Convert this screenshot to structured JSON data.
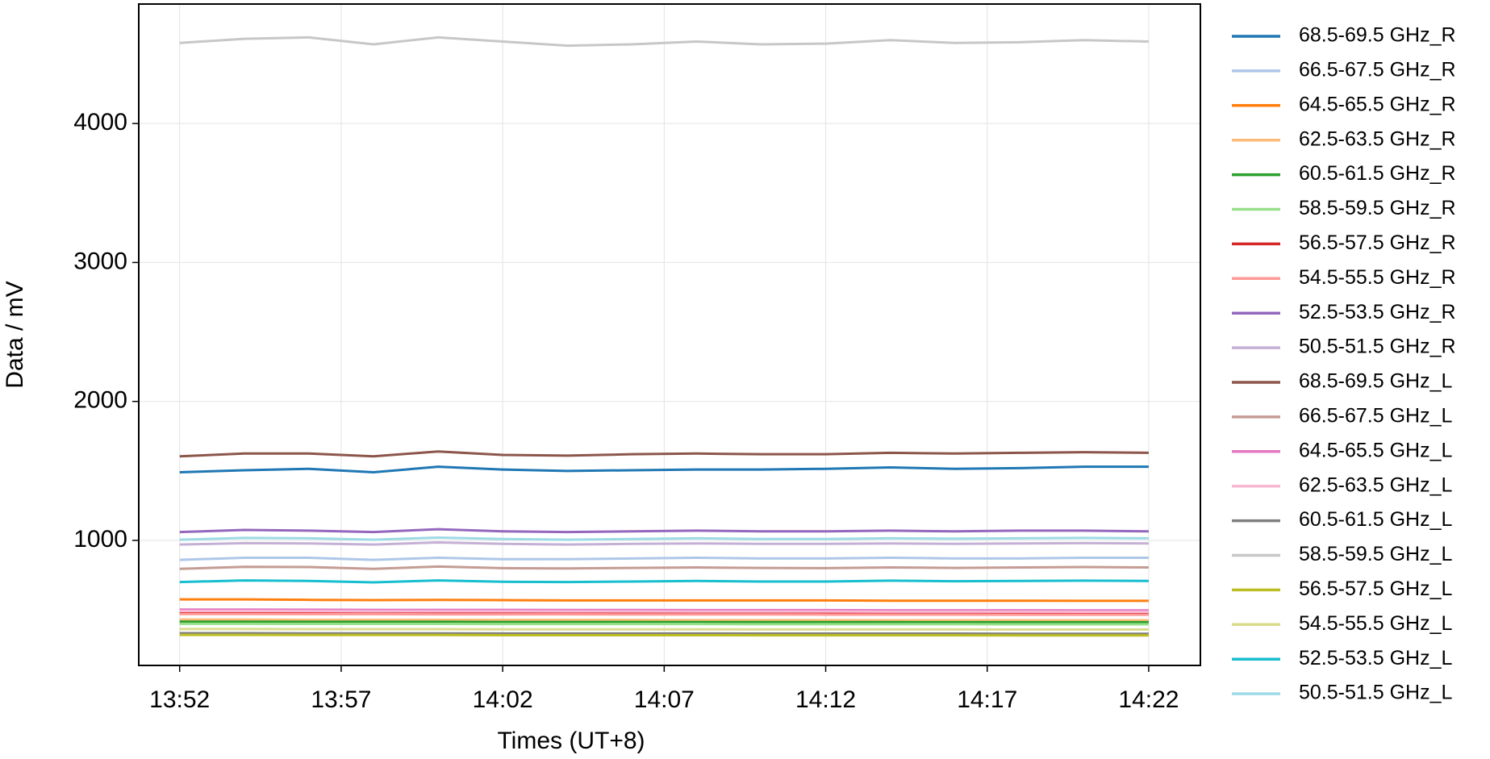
{
  "chart_data": {
    "type": "line",
    "x_label": "Times (UT+8)",
    "y_label": "Data / mV",
    "x": [
      "13:52",
      "13:54",
      "13:56",
      "13:58",
      "14:00",
      "14:02",
      "14:04",
      "14:06",
      "14:08",
      "14:10",
      "14:12",
      "14:14",
      "14:16",
      "14:18",
      "14:20",
      "14:22"
    ],
    "xlim": [
      "13:50:44",
      "14:23:36"
    ],
    "xticks": [
      "13:52",
      "13:57",
      "14:02",
      "14:07",
      "14:12",
      "14:17",
      "14:22"
    ],
    "ylim": [
      100,
      4860
    ],
    "yticks": [
      1000,
      2000,
      3000,
      4000
    ],
    "grid": true,
    "legend": "outside right",
    "series": [
      {
        "name": "68.5-69.5 GHz_R",
        "color": "#1f77b4",
        "values": [
          1490,
          1505,
          1515,
          1490,
          1530,
          1510,
          1500,
          1505,
          1510,
          1510,
          1515,
          1525,
          1515,
          1520,
          1530,
          1530
        ]
      },
      {
        "name": "66.5-67.5 GHz_R",
        "color": "#aec7e8",
        "values": [
          860,
          875,
          875,
          860,
          875,
          865,
          865,
          870,
          875,
          870,
          870,
          875,
          870,
          870,
          875,
          875
        ]
      },
      {
        "name": "64.5-65.5 GHz_R",
        "color": "#ff7f0e",
        "values": [
          575,
          575,
          572,
          570,
          572,
          570,
          568,
          568,
          568,
          568,
          568,
          566,
          566,
          566,
          565,
          565
        ]
      },
      {
        "name": "62.5-63.5 GHz_R",
        "color": "#ffbb78",
        "values": [
          430,
          430,
          428,
          428,
          428,
          427,
          427,
          427,
          426,
          426,
          426,
          425,
          425,
          425,
          425,
          425
        ]
      },
      {
        "name": "60.5-61.5 GHz_R",
        "color": "#2ca02c",
        "values": [
          415,
          415,
          414,
          414,
          414,
          413,
          413,
          413,
          412,
          412,
          412,
          412,
          411,
          411,
          411,
          411
        ]
      },
      {
        "name": "58.5-59.5 GHz_R",
        "color": "#98df8a",
        "values": [
          400,
          400,
          399,
          399,
          399,
          398,
          398,
          398,
          398,
          397,
          397,
          397,
          397,
          396,
          396,
          396
        ]
      },
      {
        "name": "56.5-57.5 GHz_R",
        "color": "#d62728",
        "values": [
          482,
          482,
          481,
          480,
          480,
          480,
          479,
          479,
          478,
          478,
          478,
          477,
          477,
          477,
          476,
          476
        ]
      },
      {
        "name": "54.5-55.5 GHz_R",
        "color": "#ff9896",
        "values": [
          470,
          470,
          469,
          469,
          468,
          468,
          468,
          467,
          467,
          467,
          466,
          466,
          466,
          465,
          465,
          465
        ]
      },
      {
        "name": "52.5-53.5 GHz_R",
        "color": "#9467bd",
        "values": [
          1060,
          1075,
          1070,
          1060,
          1080,
          1065,
          1060,
          1065,
          1070,
          1065,
          1065,
          1070,
          1065,
          1070,
          1070,
          1065
        ]
      },
      {
        "name": "50.5-51.5 GHz_R",
        "color": "#c5b0d5",
        "values": [
          970,
          980,
          978,
          970,
          985,
          975,
          970,
          975,
          978,
          975,
          975,
          978,
          975,
          978,
          980,
          978
        ]
      },
      {
        "name": "68.5-69.5 GHz_L",
        "color": "#8c564b",
        "values": [
          1605,
          1625,
          1625,
          1605,
          1640,
          1615,
          1610,
          1620,
          1625,
          1620,
          1620,
          1630,
          1625,
          1630,
          1635,
          1630
        ]
      },
      {
        "name": "66.5-67.5 GHz_L",
        "color": "#c49c94",
        "values": [
          795,
          810,
          808,
          795,
          812,
          800,
          798,
          802,
          805,
          802,
          800,
          805,
          802,
          805,
          808,
          805
        ]
      },
      {
        "name": "64.5-65.5 GHz_L",
        "color": "#e377c2",
        "values": [
          502,
          502,
          501,
          500,
          500,
          500,
          499,
          499,
          498,
          498,
          498,
          497,
          497,
          497,
          496,
          496
        ]
      },
      {
        "name": "62.5-63.5 GHz_L",
        "color": "#f7b6d2",
        "values": [
          492,
          492,
          491,
          490,
          490,
          490,
          489,
          489,
          488,
          488,
          488,
          487,
          487,
          487,
          486,
          486
        ]
      },
      {
        "name": "60.5-61.5 GHz_L",
        "color": "#7f7f7f",
        "values": [
          332,
          332,
          331,
          331,
          331,
          330,
          330,
          330,
          330,
          329,
          329,
          329,
          329,
          328,
          328,
          328
        ]
      },
      {
        "name": "58.5-59.5 GHz_L",
        "color": "#c7c7c7",
        "values": [
          4580,
          4610,
          4620,
          4570,
          4620,
          4590,
          4560,
          4570,
          4590,
          4570,
          4575,
          4600,
          4580,
          4585,
          4600,
          4590
        ]
      },
      {
        "name": "56.5-57.5 GHz_L",
        "color": "#bcbd22",
        "values": [
          320,
          320,
          319,
          319,
          319,
          318,
          318,
          318,
          318,
          317,
          317,
          317,
          317,
          316,
          316,
          316
        ]
      },
      {
        "name": "54.5-55.5 GHz_L",
        "color": "#dbdb8d",
        "values": [
          362,
          362,
          361,
          361,
          361,
          360,
          360,
          360,
          360,
          359,
          359,
          359,
          359,
          358,
          358,
          358
        ]
      },
      {
        "name": "52.5-53.5 GHz_L",
        "color": "#17becf",
        "values": [
          700,
          712,
          708,
          698,
          712,
          702,
          700,
          704,
          708,
          704,
          704,
          710,
          706,
          708,
          710,
          708
        ]
      },
      {
        "name": "50.5-51.5 GHz_L",
        "color": "#9edae5",
        "values": [
          1005,
          1018,
          1015,
          1005,
          1020,
          1010,
          1005,
          1010,
          1015,
          1010,
          1010,
          1015,
          1012,
          1015,
          1018,
          1015
        ]
      }
    ]
  }
}
